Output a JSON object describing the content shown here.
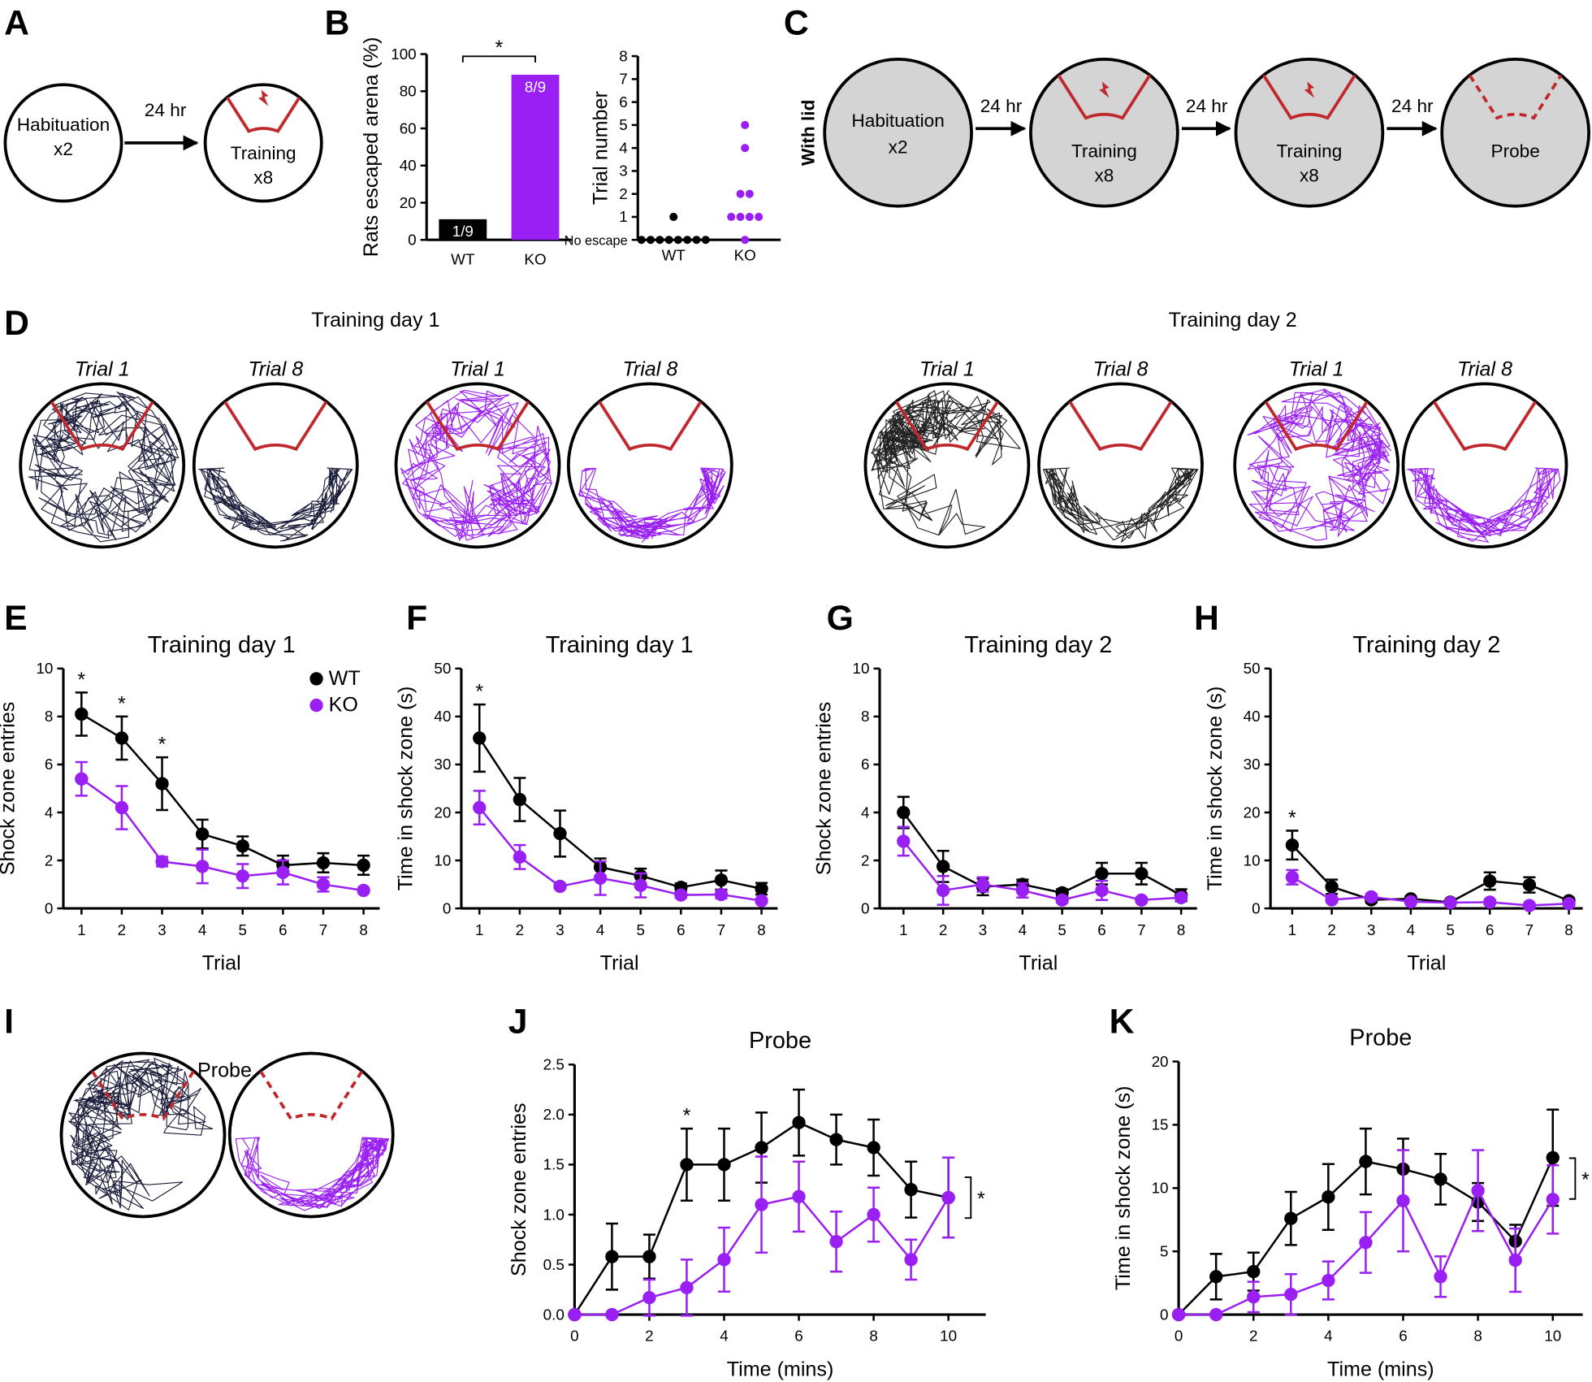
{
  "panel_labels": [
    "A",
    "B",
    "C",
    "D",
    "E",
    "F",
    "G",
    "H",
    "I",
    "J",
    "K"
  ],
  "panel_a": {
    "start": {
      "label": "Habituation",
      "count": "x2"
    },
    "interval": "24 hr",
    "end": {
      "label": "Training",
      "count": "x8"
    }
  },
  "panel_c": {
    "condition": "With lid",
    "steps": [
      {
        "label": "Habituation",
        "count": "x2"
      },
      {
        "label": "Training",
        "count": "x8"
      },
      {
        "label": "Training",
        "count": "x8"
      },
      {
        "label": "Probe"
      }
    ],
    "intervals": [
      "24 hr",
      "24 hr",
      "24 hr"
    ]
  },
  "panel_d": {
    "groups": [
      {
        "title": "Training day 1",
        "trials": [
          "Trial 1",
          "Trial 8",
          "Trial 1",
          "Trial 8"
        ]
      },
      {
        "title": "Training day 2",
        "trials": [
          "Trial 1",
          "Trial 8",
          "Trial 1",
          "Trial 8"
        ]
      }
    ]
  },
  "panel_i": {
    "title": "Probe"
  },
  "chart_data": [
    {
      "type": "bar",
      "ylabel": "Rats escaped arena (%)",
      "categories": [
        "WT",
        "KO"
      ],
      "values": [
        11.1,
        88.9
      ],
      "value_labels": [
        "1/9",
        "8/9"
      ],
      "colors": [
        "#000000",
        "#9a1ff2"
      ],
      "ylim": [
        0,
        100
      ],
      "yticks": [
        0,
        20,
        40,
        60,
        80,
        100
      ],
      "significance": "*"
    },
    {
      "type": "strip",
      "ylabel": "Trial number",
      "categories": [
        "WT",
        "KO"
      ],
      "values": [
        [
          1,
          0,
          0,
          0,
          0,
          0,
          0,
          0,
          0
        ],
        [
          5,
          4,
          2,
          2,
          1,
          1,
          1,
          1,
          0
        ]
      ],
      "colors": [
        "#000000",
        "#9a1ff2"
      ],
      "ylim": [
        0,
        8
      ],
      "yticks": [
        {
          "value": 0,
          "label": "No escape"
        },
        1,
        2,
        3,
        4,
        5,
        6,
        7,
        8
      ]
    },
    {
      "type": "line",
      "title": "Training day 1",
      "xlabel": "Trial",
      "ylabel": "Shock zone entries",
      "x": [
        1,
        2,
        3,
        4,
        5,
        6,
        7,
        8
      ],
      "xlim": [
        0.55,
        8.4
      ],
      "xticks": [
        1,
        2,
        3,
        4,
        5,
        6,
        7,
        8
      ],
      "ylim": [
        0,
        10
      ],
      "yticks": [
        0,
        2,
        4,
        6,
        8,
        10
      ],
      "legend": "upper right",
      "series": [
        {
          "name": "WT",
          "color": "#000000",
          "values": [
            8.1,
            7.1,
            5.2,
            3.1,
            2.6,
            1.8,
            1.9,
            1.8
          ],
          "errors": [
            0.9,
            0.9,
            1.1,
            0.6,
            0.4,
            0.4,
            0.4,
            0.4
          ]
        },
        {
          "name": "KO",
          "color": "#9a1ff2",
          "values": [
            5.4,
            4.2,
            1.95,
            1.75,
            1.35,
            1.5,
            1.0,
            0.75
          ],
          "errors": [
            0.7,
            0.9,
            0.2,
            0.7,
            0.5,
            0.5,
            0.3,
            0.1
          ]
        }
      ],
      "significance": [
        {
          "x": 1,
          "label": "*"
        },
        {
          "x": 2,
          "label": "*"
        },
        {
          "x": 3,
          "label": "*"
        }
      ]
    },
    {
      "type": "line",
      "title": "Training day 1",
      "xlabel": "Trial",
      "ylabel": "Time in shock zone (s)",
      "x": [
        1,
        2,
        3,
        4,
        5,
        6,
        7,
        8
      ],
      "xlim": [
        0.55,
        8.4
      ],
      "xticks": [
        1,
        2,
        3,
        4,
        5,
        6,
        7,
        8
      ],
      "ylim": [
        0,
        50
      ],
      "yticks": [
        0,
        10,
        20,
        30,
        40,
        50
      ],
      "legend": false,
      "series": [
        {
          "name": "WT",
          "color": "#000000",
          "values": [
            35.5,
            22.7,
            15.6,
            8.6,
            6.8,
            4.4,
            5.9,
            4.1
          ],
          "errors": [
            7,
            4.5,
            4.8,
            1.8,
            1.5,
            0.8,
            2,
            1.2
          ]
        },
        {
          "name": "KO",
          "color": "#9a1ff2",
          "values": [
            21,
            10.7,
            4.6,
            6.3,
            4.8,
            2.8,
            2.9,
            1.6
          ],
          "errors": [
            3.5,
            2.5,
            0.5,
            3.5,
            2.5,
            0.6,
            0.8,
            0.4
          ]
        }
      ],
      "significance": [
        {
          "x": 1,
          "label": "*"
        }
      ]
    },
    {
      "type": "line",
      "title": "Training day 2",
      "xlabel": "Trial",
      "ylabel": "Shock zone entries",
      "x": [
        1,
        2,
        3,
        4,
        5,
        6,
        7,
        8
      ],
      "xlim": [
        0.4,
        8.4
      ],
      "xticks": [
        1,
        2,
        3,
        4,
        5,
        6,
        7,
        8
      ],
      "ylim": [
        0,
        10
      ],
      "yticks": [
        0,
        2,
        4,
        6,
        8,
        10
      ],
      "legend": false,
      "series": [
        {
          "name": "WT",
          "color": "#000000",
          "values": [
            4.0,
            1.75,
            0.9,
            1.0,
            0.65,
            1.45,
            1.45,
            0.55
          ],
          "errors": [
            0.65,
            0.65,
            0.35,
            0.2,
            0.15,
            0.45,
            0.45,
            0.25
          ]
        },
        {
          "name": "KO",
          "color": "#9a1ff2",
          "values": [
            2.8,
            0.75,
            1.0,
            0.75,
            0.35,
            0.75,
            0.35,
            0.45
          ],
          "errors": [
            0.6,
            0.6,
            0.3,
            0.3,
            0.1,
            0.4,
            0.1,
            0.1
          ]
        }
      ],
      "significance": []
    },
    {
      "type": "line",
      "title": "Training day 2",
      "xlabel": "Trial",
      "ylabel": "Time in shock zone (s)",
      "x": [
        1,
        2,
        3,
        4,
        5,
        6,
        7,
        8
      ],
      "xlim": [
        0.45,
        8.35
      ],
      "xticks": [
        1,
        2,
        3,
        4,
        5,
        6,
        7,
        8
      ],
      "ylim": [
        0,
        50
      ],
      "yticks": [
        0,
        10,
        20,
        30,
        40,
        50
      ],
      "legend": false,
      "series": [
        {
          "name": "WT",
          "color": "#000000",
          "values": [
            13.2,
            4.5,
            1.8,
            2.0,
            1.3,
            5.7,
            4.9,
            1.6
          ],
          "errors": [
            3,
            1.5,
            0.6,
            0.5,
            0.4,
            1.8,
            1.6,
            0.5
          ]
        },
        {
          "name": "KO",
          "color": "#9a1ff2",
          "values": [
            6.5,
            1.8,
            2.4,
            1.4,
            1.2,
            1.3,
            0.6,
            1.0
          ],
          "errors": [
            1.5,
            0.5,
            0.6,
            0.3,
            0.2,
            0.4,
            0.3,
            0.3
          ]
        }
      ],
      "significance": [
        {
          "x": 1,
          "label": "*"
        }
      ]
    },
    {
      "type": "line",
      "title": "Probe",
      "xlabel": "Time (mins)",
      "ylabel": "Shock zone entries",
      "x": [
        0,
        1,
        2,
        3,
        4,
        5,
        6,
        7,
        8,
        9,
        10
      ],
      "xlim": [
        0,
        11
      ],
      "xticks": [
        0,
        2,
        4,
        6,
        8,
        10
      ],
      "ylim": [
        0,
        2.5
      ],
      "yticks": [
        {
          "value": 0,
          "label": "0.0"
        },
        0.5,
        {
          "value": 1,
          "label": "1.0"
        },
        1.5,
        {
          "value": 2,
          "label": "2.0"
        },
        2.5
      ],
      "legend": false,
      "series": [
        {
          "name": "WT",
          "color": "#000000",
          "values": [
            0,
            0.58,
            0.58,
            1.5,
            1.5,
            1.67,
            1.92,
            1.75,
            1.67,
            1.25,
            1.17
          ],
          "errors": [
            0,
            0.33,
            0.22,
            0.36,
            0.36,
            0.35,
            0.33,
            0.25,
            0.28,
            0.28,
            0.4
          ]
        },
        {
          "name": "KO",
          "color": "#9a1ff2",
          "values": [
            0,
            0,
            0.17,
            0.27,
            0.55,
            1.1,
            1.18,
            0.73,
            1.0,
            0.55,
            1.17
          ],
          "errors": [
            0,
            0,
            0.18,
            0.28,
            0.32,
            0.48,
            0.35,
            0.3,
            0.27,
            0.2,
            0.4
          ]
        }
      ],
      "significance": [
        {
          "x": 3,
          "label": "*"
        }
      ],
      "bracket": "*"
    },
    {
      "type": "line",
      "title": "Probe",
      "xlabel": "Time (mins)",
      "ylabel": "Time in shock zone (s)",
      "x": [
        0,
        1,
        2,
        3,
        4,
        5,
        6,
        7,
        8,
        9,
        10
      ],
      "xlim": [
        0,
        10.8
      ],
      "xticks": [
        0,
        2,
        4,
        6,
        8,
        10
      ],
      "ylim": [
        0,
        20
      ],
      "yticks": [
        0,
        5,
        10,
        15,
        20
      ],
      "legend": false,
      "series": [
        {
          "name": "WT",
          "color": "#000000",
          "values": [
            0,
            3.0,
            3.4,
            7.6,
            9.3,
            12.1,
            11.5,
            10.7,
            8.9,
            5.8,
            12.4
          ],
          "errors": [
            0,
            1.8,
            1.5,
            2.1,
            2.6,
            2.6,
            2.4,
            2.0,
            1.5,
            1.3,
            3.8
          ]
        },
        {
          "name": "KO",
          "color": "#9a1ff2",
          "values": [
            0,
            0,
            1.4,
            1.6,
            2.7,
            5.7,
            9.0,
            3.0,
            9.8,
            4.3,
            9.1
          ],
          "errors": [
            0,
            0,
            1.2,
            1.6,
            1.5,
            2.4,
            4.0,
            1.6,
            3.2,
            2.5,
            2.7
          ]
        }
      ],
      "significance": [],
      "bracket": "*"
    }
  ]
}
